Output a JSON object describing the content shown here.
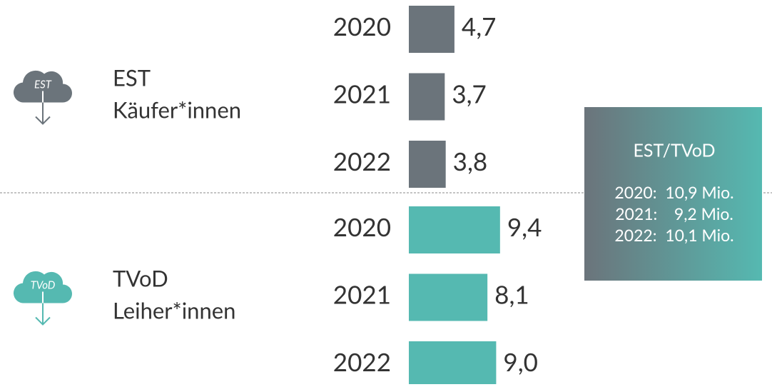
{
  "chart_data": {
    "type": "bar",
    "categories": [
      "2020",
      "2021",
      "2022"
    ],
    "series": [
      {
        "name": "EST",
        "audience": "Käufer*innen",
        "color": "#6b747b",
        "values": [
          4.7,
          3.7,
          3.8
        ],
        "value_labels": [
          "4,7",
          "3,7",
          "3,8"
        ]
      },
      {
        "name": "TVoD",
        "audience": "Leiher*innen",
        "color": "#55b9b1",
        "values": [
          9.4,
          8.1,
          9.0
        ],
        "value_labels": [
          "9,4",
          "8,1",
          "9,0"
        ]
      }
    ],
    "summary_box": {
      "title": "EST/TVoD",
      "lines": [
        "2020:  10,9 Mio.",
        "2021:    9,2 Mio.",
        "2022:  10,1 Mio."
      ]
    }
  }
}
